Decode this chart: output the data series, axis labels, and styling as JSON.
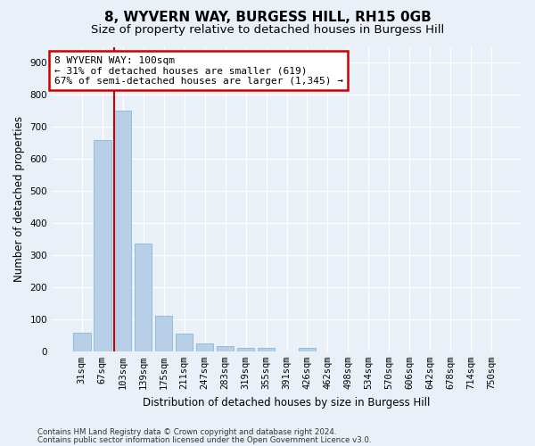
{
  "title1": "8, WYVERN WAY, BURGESS HILL, RH15 0GB",
  "title2": "Size of property relative to detached houses in Burgess Hill",
  "xlabel": "Distribution of detached houses by size in Burgess Hill",
  "ylabel": "Number of detached properties",
  "categories": [
    "31sqm",
    "67sqm",
    "103sqm",
    "139sqm",
    "175sqm",
    "211sqm",
    "247sqm",
    "283sqm",
    "319sqm",
    "355sqm",
    "391sqm",
    "426sqm",
    "462sqm",
    "498sqm",
    "534sqm",
    "570sqm",
    "606sqm",
    "642sqm",
    "678sqm",
    "714sqm",
    "750sqm"
  ],
  "values": [
    57,
    660,
    750,
    335,
    110,
    55,
    25,
    15,
    10,
    10,
    0,
    10,
    0,
    0,
    0,
    0,
    0,
    0,
    0,
    0,
    0
  ],
  "bar_color": "#b8cfe8",
  "bar_edge_color": "#7aadd4",
  "highlight_color": "#cc0000",
  "highlight_bar_index": 2,
  "annotation_title": "8 WYVERN WAY: 100sqm",
  "annotation_line1": "← 31% of detached houses are smaller (619)",
  "annotation_line2": "67% of semi-detached houses are larger (1,345) →",
  "annotation_box_color": "#ffffff",
  "annotation_box_edge_color": "#cc0000",
  "ylim": [
    0,
    950
  ],
  "yticks": [
    0,
    100,
    200,
    300,
    400,
    500,
    600,
    700,
    800,
    900
  ],
  "footer1": "Contains HM Land Registry data © Crown copyright and database right 2024.",
  "footer2": "Contains public sector information licensed under the Open Government Licence v3.0.",
  "bg_color": "#eaf0f8",
  "grid_color": "#ffffff",
  "title1_fontsize": 11,
  "title2_fontsize": 9.5,
  "xlabel_fontsize": 8.5,
  "ylabel_fontsize": 8.5,
  "tick_fontsize": 7.5,
  "annotation_fontsize": 8,
  "footer_fontsize": 6.2
}
